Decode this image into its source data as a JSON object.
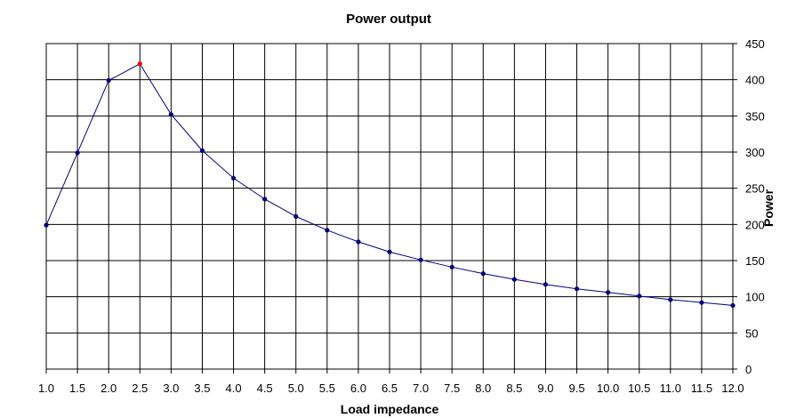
{
  "chart_data": {
    "type": "line",
    "title": "Power output",
    "xlabel": "Load impedance",
    "ylabel": "Power",
    "x": [
      1.0,
      1.5,
      2.0,
      2.5,
      3.0,
      3.5,
      4.0,
      4.5,
      5.0,
      5.5,
      6.0,
      6.5,
      7.0,
      7.5,
      8.0,
      8.5,
      9.0,
      9.5,
      10.0,
      10.5,
      11.0,
      11.5,
      12.0
    ],
    "x_tick_labels": [
      "1.0",
      "1.5",
      "2.0",
      "2.5",
      "3.0",
      "3.5",
      "4.0",
      "4.5",
      "5.0",
      "5.5",
      "6.0",
      "6.5",
      "7.0",
      "7.5",
      "8.0",
      "8.5",
      "9.0",
      "9.5",
      "10.0",
      "10.5",
      "11.0",
      "11.5",
      "12.0"
    ],
    "y_ticks": [
      0,
      50,
      100,
      150,
      200,
      250,
      300,
      350,
      400,
      450
    ],
    "ylim": [
      0,
      450
    ],
    "y_axis_side": "right",
    "grid": true,
    "series": [
      {
        "values": [
          199,
          299,
          399,
          422,
          352,
          302,
          264,
          235,
          211,
          192,
          176,
          162,
          151,
          141,
          132,
          124,
          117,
          111,
          106,
          101,
          96,
          92,
          88
        ],
        "color": "#000080",
        "highlight_index": 3,
        "highlight_color": "#ff0000"
      }
    ]
  }
}
